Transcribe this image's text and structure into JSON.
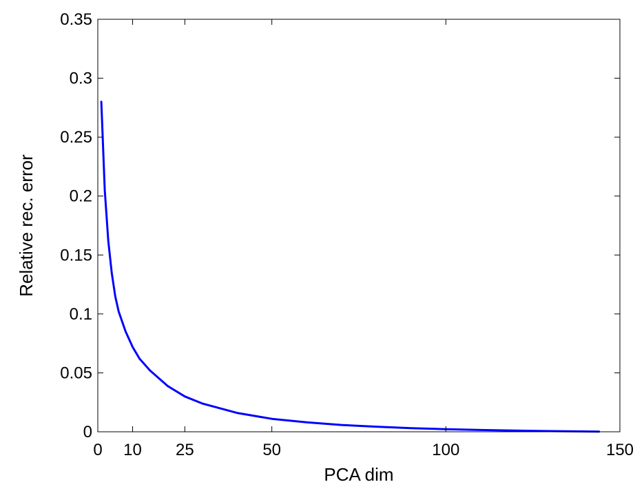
{
  "chart_data": {
    "type": "line",
    "title": "",
    "xlabel": "PCA dim",
    "ylabel": "Relative rec. error",
    "xlim": [
      0,
      150
    ],
    "ylim": [
      0,
      0.35
    ],
    "grid": false,
    "legend": "none",
    "x_ticks": [
      0,
      10,
      25,
      50,
      100,
      150
    ],
    "x_tick_labels": [
      "0",
      "10",
      "25",
      "50",
      "100",
      "150"
    ],
    "y_ticks": [
      0,
      0.05,
      0.1,
      0.15,
      0.2,
      0.25,
      0.3,
      0.35
    ],
    "y_tick_labels": [
      "0",
      "0.05",
      "0.1",
      "0.15",
      "0.2",
      "0.25",
      "0.3",
      "0.35"
    ],
    "series": [
      {
        "color": "#0000ff",
        "x": [
          1,
          2,
          3,
          4,
          5,
          6,
          8,
          10,
          12,
          15,
          20,
          25,
          30,
          40,
          50,
          60,
          70,
          80,
          90,
          100,
          110,
          120,
          130,
          144
        ],
        "y": [
          0.28,
          0.205,
          0.162,
          0.135,
          0.115,
          0.102,
          0.085,
          0.072,
          0.062,
          0.052,
          0.039,
          0.03,
          0.024,
          0.016,
          0.011,
          0.008,
          0.0058,
          0.0043,
          0.0031,
          0.0022,
          0.0015,
          0.001,
          0.0006,
          0.0002
        ]
      }
    ]
  }
}
